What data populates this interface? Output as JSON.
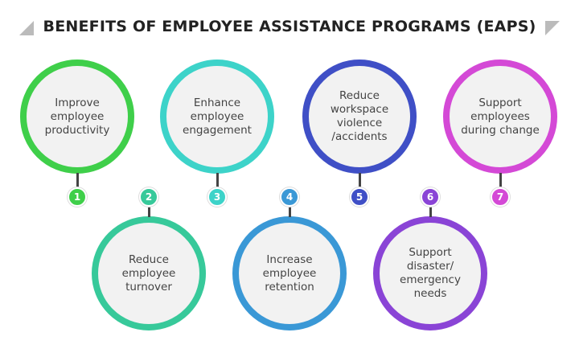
{
  "title": "BENEFITS OF EMPLOYEE ASSISTANCE PROGRAMS (EAPS)",
  "items": [
    {
      "number": "1",
      "text": "Improve employee productivity",
      "color": "#3fcf4a",
      "row": "top"
    },
    {
      "number": "2",
      "text": "Reduce employee turnover",
      "color": "#37c99a",
      "row": "bottom"
    },
    {
      "number": "3",
      "text": "Enhance employee engagement",
      "color": "#3dd3c9",
      "row": "top"
    },
    {
      "number": "4",
      "text": "Increase employee retention",
      "color": "#3a98d6",
      "row": "bottom"
    },
    {
      "number": "5",
      "text": "Reduce workspace violence /accidents",
      "color": "#3f4fc6",
      "row": "top"
    },
    {
      "number": "6",
      "text": "Support disaster/ emergency needs",
      "color": "#8a44d6",
      "row": "bottom"
    },
    {
      "number": "7",
      "text": "Support employees during change",
      "color": "#d449d6",
      "row": "top"
    }
  ]
}
